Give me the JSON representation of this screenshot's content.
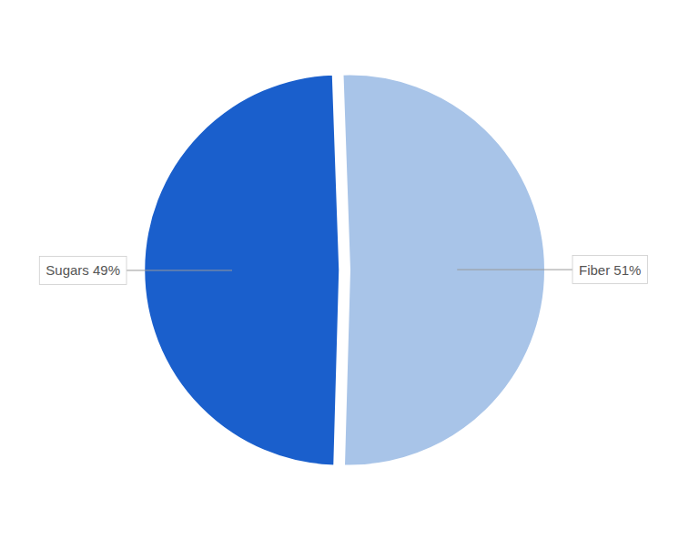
{
  "chart_data": {
    "type": "pie",
    "categories": [
      "Sugars 49%",
      "Fiber 51%"
    ],
    "values": [
      49,
      51
    ],
    "colors": [
      "#1a5fcc",
      "#a8c4e8"
    ]
  }
}
